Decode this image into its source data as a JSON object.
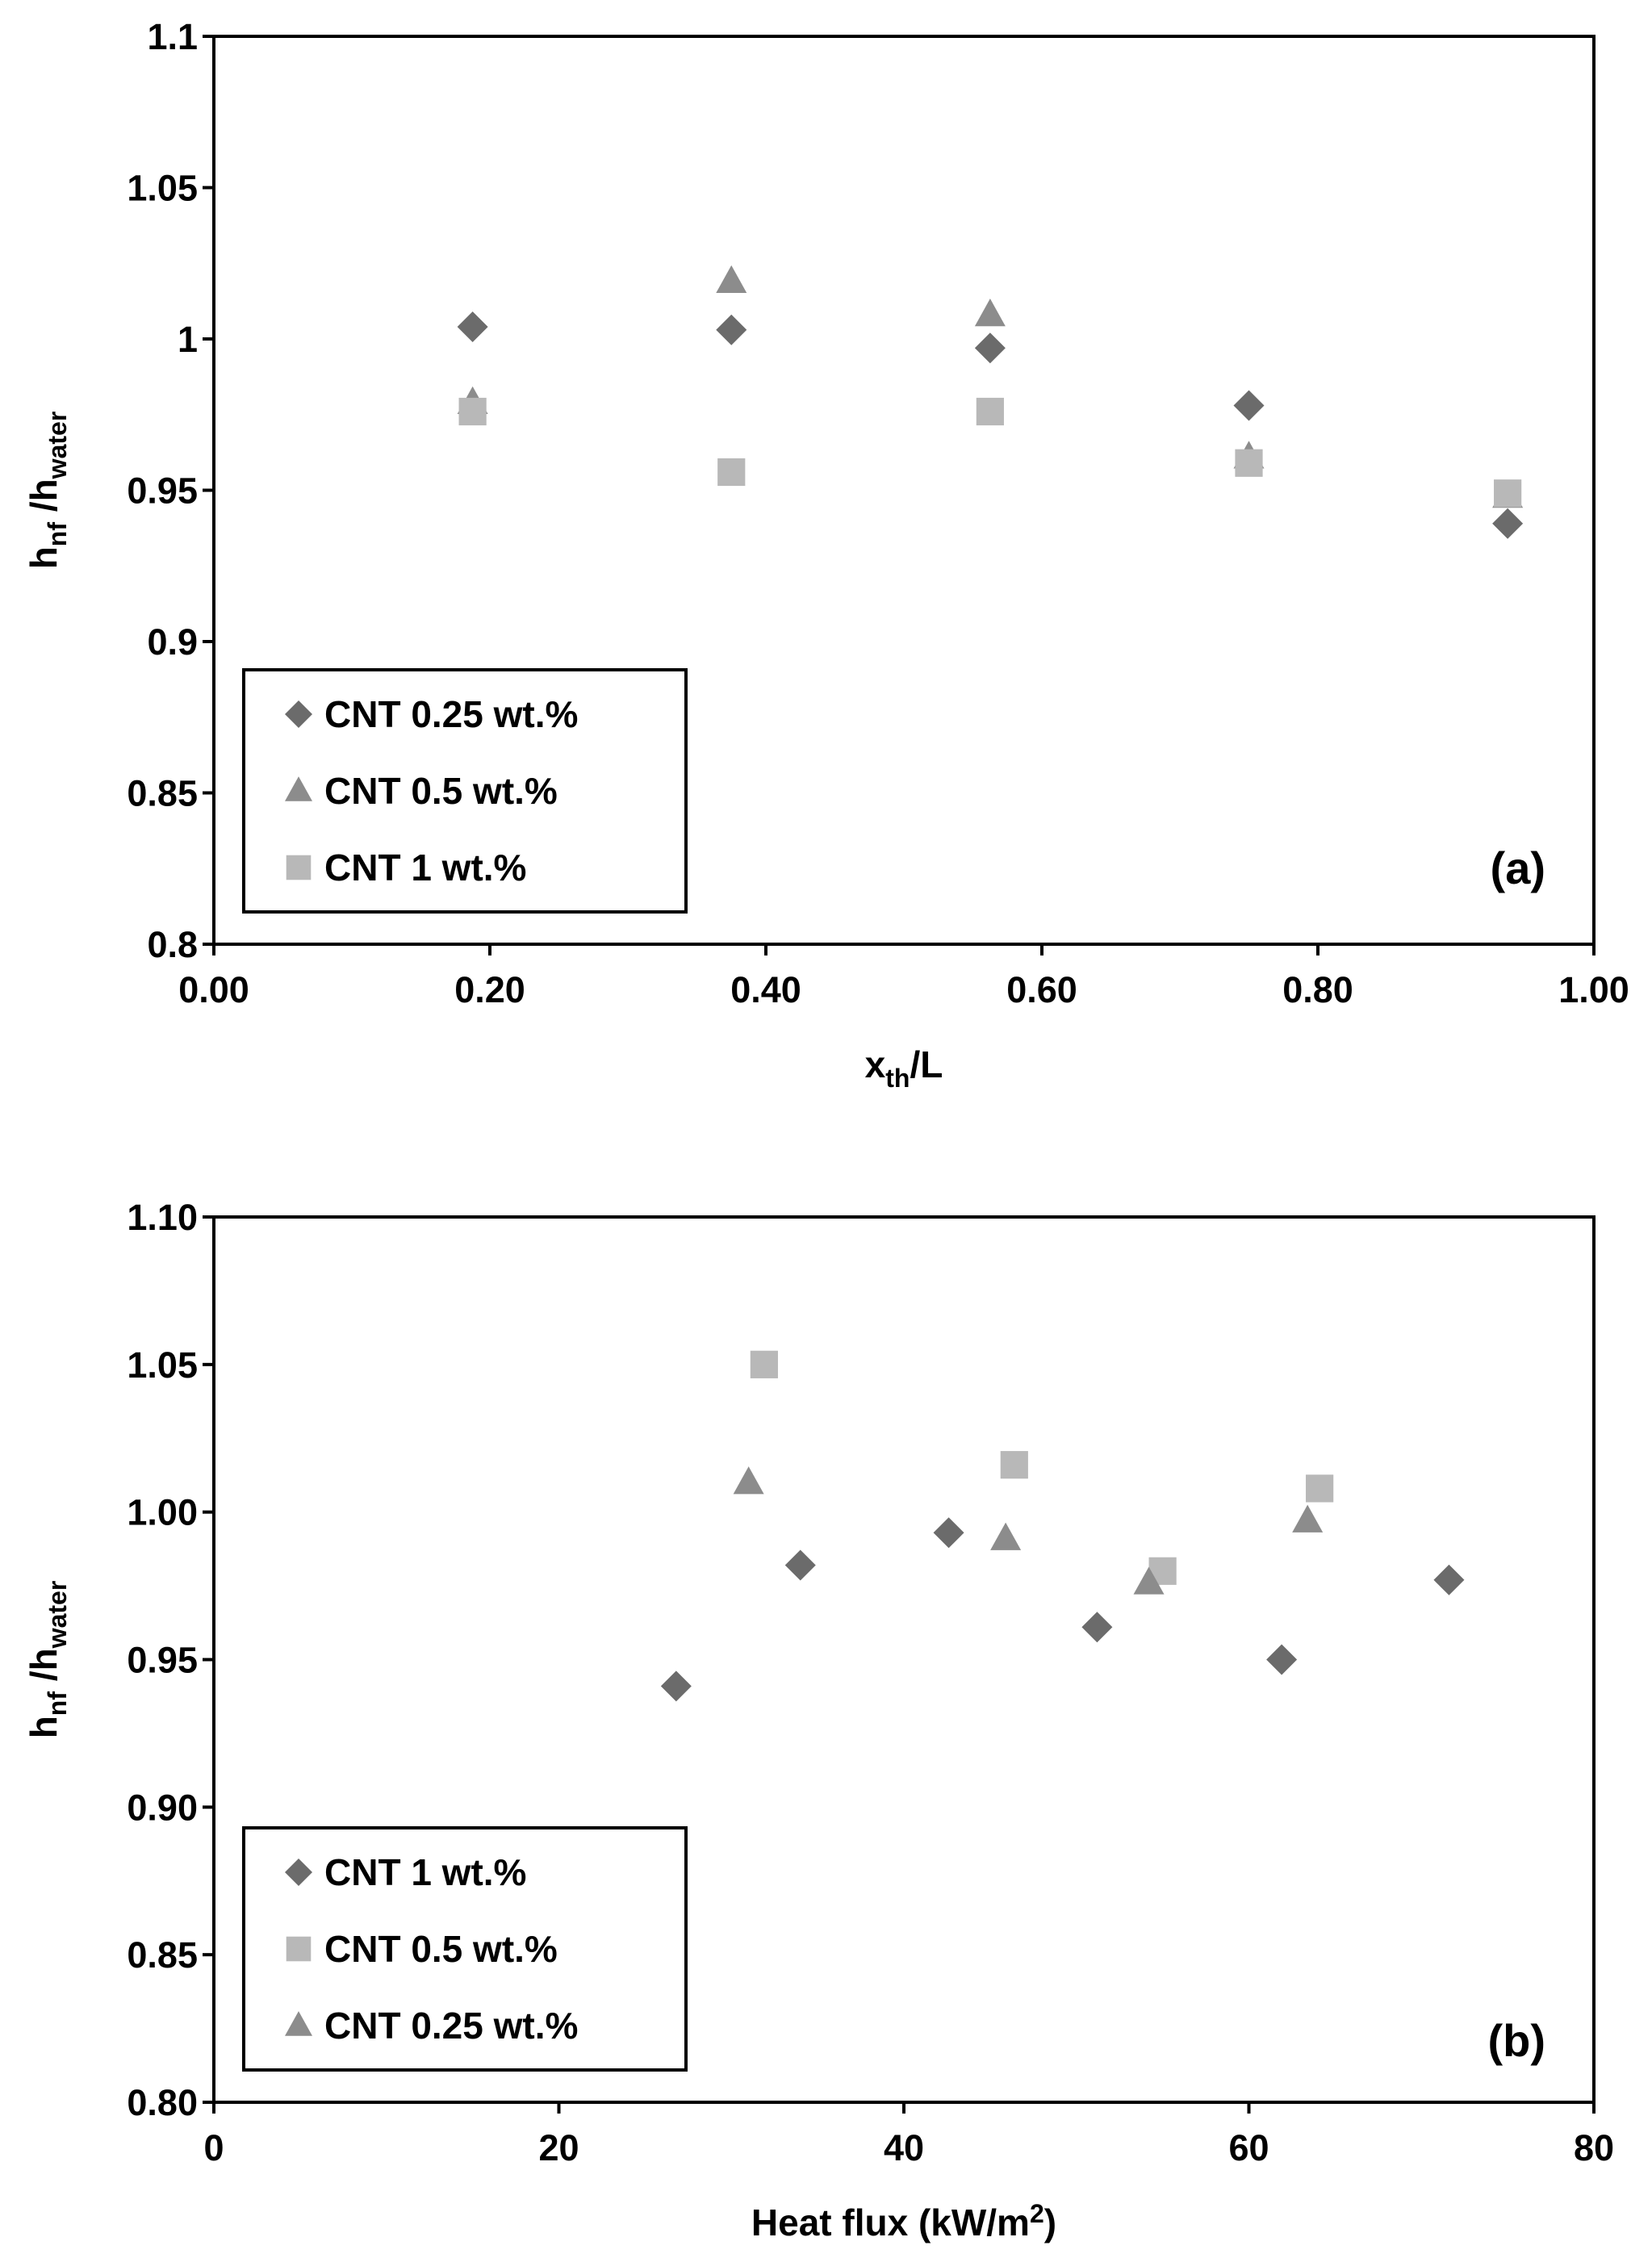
{
  "chart_data": [
    {
      "panel": "(a)",
      "type": "scatter",
      "xlabel": {
        "main": "x",
        "sub": "th",
        "rest": "/L"
      },
      "ylabel": {
        "main": "h",
        "sub1": "nf",
        "mid": " /h",
        "sub2": "water"
      },
      "xlim": [
        0.0,
        1.0
      ],
      "ylim": [
        0.8,
        1.1
      ],
      "xticks": [
        0.0,
        0.2,
        0.4,
        0.6,
        0.8,
        1.0
      ],
      "xtick_labels": [
        "0.00",
        "0.20",
        "0.40",
        "0.60",
        "0.80",
        "1.00"
      ],
      "yticks": [
        0.8,
        0.85,
        0.9,
        0.95,
        1.0,
        1.05,
        1.1
      ],
      "ytick_labels": [
        "0.8",
        "0.85",
        "0.9",
        "0.95",
        "1",
        "1.05",
        "1.1"
      ],
      "grid": false,
      "legend_position": "bottom-left",
      "series": [
        {
          "name": "CNT 0.25 wt.%",
          "marker": "diamond",
          "color": "#6b6b6b",
          "x": [
            0.1875,
            0.375,
            0.5625,
            0.75,
            0.9375
          ],
          "y": [
            1.004,
            1.003,
            0.997,
            0.978,
            0.939
          ]
        },
        {
          "name": "CNT 0.5 wt.%",
          "marker": "triangle",
          "color": "#8c8c8c",
          "x": [
            0.1875,
            0.375,
            0.5625,
            0.75,
            0.9375
          ],
          "y": [
            0.979,
            1.019,
            1.008,
            0.961,
            0.948
          ]
        },
        {
          "name": "CNT 1 wt.%",
          "marker": "square",
          "color": "#b8b8b8",
          "x": [
            0.1875,
            0.375,
            0.5625,
            0.75,
            0.9375
          ],
          "y": [
            0.976,
            0.956,
            0.976,
            0.959,
            0.949
          ]
        }
      ]
    },
    {
      "panel": "(b)",
      "type": "scatter",
      "xlabel": {
        "main": "Heat flux (kW/m",
        "sup": "2",
        "rest": ")"
      },
      "ylabel": {
        "main": "h",
        "sub1": "nf",
        "mid": " /h",
        "sub2": "water"
      },
      "xlim": [
        0,
        80
      ],
      "ylim": [
        0.8,
        1.1
      ],
      "xticks": [
        0,
        20,
        40,
        60,
        80
      ],
      "xtick_labels": [
        "0",
        "20",
        "40",
        "60",
        "80"
      ],
      "yticks": [
        0.8,
        0.85,
        0.9,
        0.95,
        1.0,
        1.05,
        1.1
      ],
      "ytick_labels": [
        "0.80",
        "0.85",
        "0.90",
        "0.95",
        "1.00",
        "1.05",
        "1.10"
      ],
      "grid": false,
      "legend_position": "bottom-left",
      "series": [
        {
          "name": "CNT 1 wt.%",
          "marker": "diamond",
          "color": "#6b6b6b",
          "x": [
            26.8,
            34.0,
            42.6,
            51.2,
            61.9,
            71.6
          ],
          "y": [
            0.941,
            0.982,
            0.993,
            0.961,
            0.95,
            0.977
          ]
        },
        {
          "name": "CNT 0.5 wt.%",
          "marker": "square",
          "color": "#b8b8b8",
          "x": [
            31.9,
            46.4,
            55.0,
            64.1
          ],
          "y": [
            1.05,
            1.016,
            0.98,
            1.008
          ]
        },
        {
          "name": "CNT 0.25 wt.%",
          "marker": "triangle",
          "color": "#8c8c8c",
          "x": [
            31.0,
            45.9,
            54.2,
            63.4
          ],
          "y": [
            1.01,
            0.991,
            0.976,
            0.997
          ]
        }
      ]
    }
  ]
}
